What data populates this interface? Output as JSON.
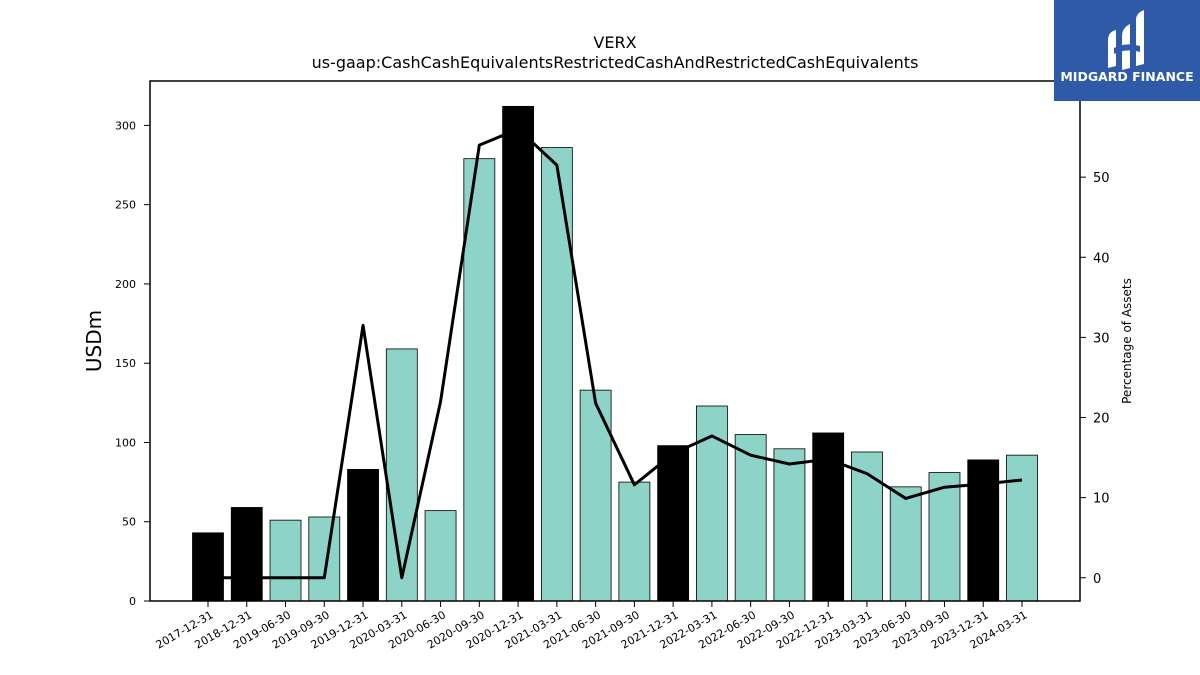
{
  "chart_data": {
    "type": "bar",
    "title": "VERX",
    "subtitle": "us-gaap:CashCashEquivalentsRestrictedCashAndRestrictedCashEquivalents",
    "ylabel": "USDm",
    "y2label": "Percentage of Assets",
    "ylim": [
      0,
      328
    ],
    "y2lim": [
      -2.9,
      62
    ],
    "yticks": [
      0,
      50,
      100,
      150,
      200,
      250,
      300
    ],
    "y2ticks": [
      0,
      10,
      20,
      30,
      40,
      50
    ],
    "grid": false,
    "categories": [
      "2017-12-31",
      "2018-12-31",
      "2019-06-30",
      "2019-09-30",
      "2019-12-31",
      "2020-03-31",
      "2020-06-30",
      "2020-09-30",
      "2020-12-31",
      "2021-03-31",
      "2021-06-30",
      "2021-09-30",
      "2021-12-31",
      "2022-03-31",
      "2022-06-30",
      "2022-09-30",
      "2022-12-31",
      "2023-03-31",
      "2023-06-30",
      "2023-09-30",
      "2023-12-31",
      "2024-03-31"
    ],
    "series": [
      {
        "type": "bar",
        "values": [
          43,
          59,
          51,
          53,
          83,
          159,
          57,
          279,
          312,
          286,
          133,
          75,
          98,
          123,
          105,
          96,
          106,
          94,
          72,
          81,
          89,
          92
        ],
        "colors": [
          "#000000",
          "#000000",
          "#8dd3c7",
          "#8dd3c7",
          "#000000",
          "#8dd3c7",
          "#8dd3c7",
          "#8dd3c7",
          "#000000",
          "#8dd3c7",
          "#8dd3c7",
          "#8dd3c7",
          "#000000",
          "#8dd3c7",
          "#8dd3c7",
          "#8dd3c7",
          "#000000",
          "#8dd3c7",
          "#8dd3c7",
          "#8dd3c7",
          "#000000",
          "#8dd3c7"
        ]
      },
      {
        "type": "line",
        "axis": "right",
        "color": "#000000",
        "values": [
          0,
          0,
          0,
          0,
          31.5,
          0,
          22,
          54,
          56,
          51.5,
          21.8,
          11.6,
          15.5,
          17.7,
          15.3,
          14.2,
          14.8,
          13,
          9.9,
          11.3,
          11.7,
          12.2
        ]
      }
    ]
  },
  "logo": {
    "text": "MIDGARD FINANCE",
    "bg_color": "#2e5aa8"
  }
}
